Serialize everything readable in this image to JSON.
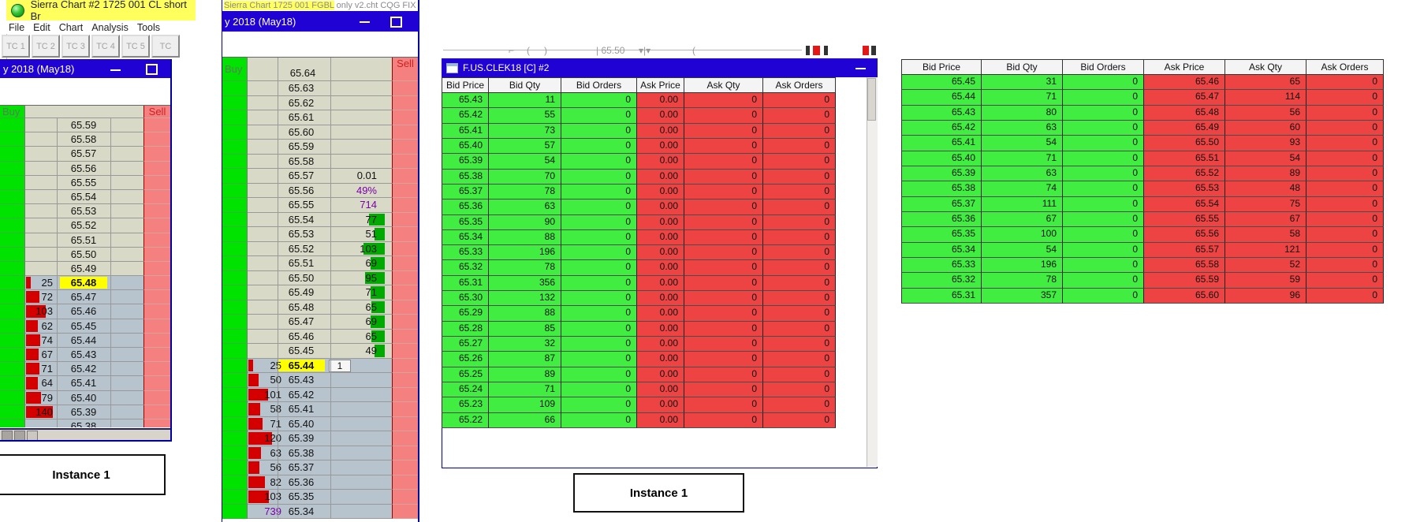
{
  "colors": {
    "titlebar_blue": "#2102d5",
    "title_yellow": "#ffff5e",
    "buy_green": "#00e300",
    "sell_red": "#f58080",
    "ask_row_beige": "#d9d9c7",
    "bid_row_blue": "#b7c3cd",
    "bid_bar_red": "#d40000",
    "ask_bar_green": "#00aa00",
    "table_bid_green": "#41ed41",
    "table_ask_red": "#ee4343",
    "highlight_yellow": "#ffff00",
    "purple_text": "#7a00a8"
  },
  "win1": {
    "app_title": "Sierra Chart #2 1725 001 CL short Br",
    "menu": [
      "File",
      "Edit",
      "Chart",
      "Analysis",
      "Tools"
    ],
    "toolbar": [
      "TC 1",
      "TC 2",
      "TC 3",
      "TC 4",
      "TC 5",
      "TC"
    ],
    "chart_title": "y 2018 (May18)",
    "buy_label": "Buy",
    "sell_label": "Sell",
    "ask_prices": [
      "65.59",
      "65.58",
      "65.57",
      "65.56",
      "65.55",
      "65.54",
      "65.53",
      "65.52",
      "65.51",
      "65.50",
      "65.49"
    ],
    "bid_rows": [
      {
        "qty": 25,
        "price": "65.48",
        "highlight": true
      },
      {
        "qty": 72,
        "price": "65.47"
      },
      {
        "qty": 103,
        "price": "65.46"
      },
      {
        "qty": 62,
        "price": "65.45"
      },
      {
        "qty": 74,
        "price": "65.44"
      },
      {
        "qty": 67,
        "price": "65.43"
      },
      {
        "qty": 71,
        "price": "65.42"
      },
      {
        "qty": 64,
        "price": "65.41"
      },
      {
        "qty": 79,
        "price": "65.40"
      },
      {
        "qty": 140,
        "price": "65.39"
      }
    ],
    "partial_price": "65.38",
    "instance_label": "Instance 1"
  },
  "win2": {
    "title_highlight": "Sierra Chart 1725 001 FGBL",
    "title_rest": " only v2.cht  CQG FIX",
    "chart_title": "y 2018 (May18)",
    "buy_label": "Buy",
    "sell_label": "Sell",
    "partial_top_price": "65.64",
    "ask_rows": [
      {
        "price": "65.63"
      },
      {
        "price": "65.62"
      },
      {
        "price": "65.61"
      },
      {
        "price": "65.60"
      },
      {
        "price": "65.59"
      },
      {
        "price": "65.58"
      },
      {
        "price": "65.57",
        "value": "0.01",
        "vcolor": "#111"
      },
      {
        "price": "65.56",
        "value": "49%",
        "vcolor": "#7a00a8"
      },
      {
        "price": "65.55",
        "value": "714",
        "vcolor": "#7a00a8"
      },
      {
        "price": "65.54",
        "value": "77",
        "bar": true
      },
      {
        "price": "65.53",
        "value": "51",
        "bar": true
      },
      {
        "price": "65.52",
        "value": "103",
        "bar": true
      },
      {
        "price": "65.51",
        "value": "69",
        "bar": true
      },
      {
        "price": "65.50",
        "value": "95",
        "bar": true
      },
      {
        "price": "65.49",
        "value": "71",
        "bar": true
      },
      {
        "price": "65.48",
        "value": "65",
        "bar": true
      },
      {
        "price": "65.47",
        "value": "69",
        "bar": true
      },
      {
        "price": "65.46",
        "value": "65",
        "bar": true
      },
      {
        "price": "65.45",
        "value": "49",
        "bar": true
      }
    ],
    "current_row": {
      "qty": 25,
      "price": "65.44",
      "flag": "1"
    },
    "bid_rows": [
      {
        "qty": 50,
        "price": "65.43"
      },
      {
        "qty": 101,
        "price": "65.42"
      },
      {
        "qty": 58,
        "price": "65.41"
      },
      {
        "qty": 71,
        "price": "65.40"
      },
      {
        "qty": 120,
        "price": "65.39"
      },
      {
        "qty": 63,
        "price": "65.38"
      },
      {
        "qty": 56,
        "price": "65.37"
      },
      {
        "qty": 82,
        "price": "65.36"
      },
      {
        "qty": 103,
        "price": "65.35"
      },
      {
        "qty": 739,
        "price": "65.34",
        "purple": true
      }
    ]
  },
  "win3": {
    "fragments": [
      "(",
      ")",
      "| 65.50",
      "▾|▾",
      "("
    ],
    "title": "F.US.CLEK18 [C]  #2",
    "headers": [
      "Bid Price",
      "Bid Qty",
      "Bid Orders",
      "Ask Price",
      "Ask Qty",
      "Ask Orders"
    ],
    "rows": [
      [
        "65.43",
        11,
        0,
        "0.00",
        0,
        0
      ],
      [
        "65.42",
        55,
        0,
        "0.00",
        0,
        0
      ],
      [
        "65.41",
        73,
        0,
        "0.00",
        0,
        0
      ],
      [
        "65.40",
        57,
        0,
        "0.00",
        0,
        0
      ],
      [
        "65.39",
        54,
        0,
        "0.00",
        0,
        0
      ],
      [
        "65.38",
        70,
        0,
        "0.00",
        0,
        0
      ],
      [
        "65.37",
        78,
        0,
        "0.00",
        0,
        0
      ],
      [
        "65.36",
        63,
        0,
        "0.00",
        0,
        0
      ],
      [
        "65.35",
        90,
        0,
        "0.00",
        0,
        0
      ],
      [
        "65.34",
        88,
        0,
        "0.00",
        0,
        0
      ],
      [
        "65.33",
        196,
        0,
        "0.00",
        0,
        0
      ],
      [
        "65.32",
        78,
        0,
        "0.00",
        0,
        0
      ],
      [
        "65.31",
        356,
        0,
        "0.00",
        0,
        0
      ],
      [
        "65.30",
        132,
        0,
        "0.00",
        0,
        0
      ],
      [
        "65.29",
        88,
        0,
        "0.00",
        0,
        0
      ],
      [
        "65.28",
        85,
        0,
        "0.00",
        0,
        0
      ],
      [
        "65.27",
        32,
        0,
        "0.00",
        0,
        0
      ],
      [
        "65.26",
        87,
        0,
        "0.00",
        0,
        0
      ],
      [
        "65.25",
        89,
        0,
        "0.00",
        0,
        0
      ],
      [
        "65.24",
        71,
        0,
        "0.00",
        0,
        0
      ],
      [
        "65.23",
        109,
        0,
        "0.00",
        0,
        0
      ],
      [
        "65.22",
        66,
        0,
        "0.00",
        0,
        0
      ]
    ],
    "instance_label": "Instance 1"
  },
  "win4": {
    "headers": [
      "Bid Price",
      "Bid Qty",
      "Bid Orders",
      "Ask Price",
      "Ask Qty",
      "Ask Orders"
    ],
    "rows": [
      [
        "65.45",
        31,
        0,
        "65.46",
        65,
        0
      ],
      [
        "65.44",
        71,
        0,
        "65.47",
        114,
        0
      ],
      [
        "65.43",
        80,
        0,
        "65.48",
        56,
        0
      ],
      [
        "65.42",
        63,
        0,
        "65.49",
        60,
        0
      ],
      [
        "65.41",
        54,
        0,
        "65.50",
        93,
        0
      ],
      [
        "65.40",
        71,
        0,
        "65.51",
        54,
        0
      ],
      [
        "65.39",
        63,
        0,
        "65.52",
        89,
        0
      ],
      [
        "65.38",
        74,
        0,
        "65.53",
        48,
        0
      ],
      [
        "65.37",
        111,
        0,
        "65.54",
        75,
        0
      ],
      [
        "65.36",
        67,
        0,
        "65.55",
        67,
        0
      ],
      [
        "65.35",
        100,
        0,
        "65.56",
        58,
        0
      ],
      [
        "65.34",
        54,
        0,
        "65.57",
        121,
        0
      ],
      [
        "65.33",
        196,
        0,
        "65.58",
        52,
        0
      ],
      [
        "65.32",
        78,
        0,
        "65.59",
        59,
        0
      ],
      [
        "65.31",
        357,
        0,
        "65.60",
        96,
        0
      ]
    ]
  }
}
